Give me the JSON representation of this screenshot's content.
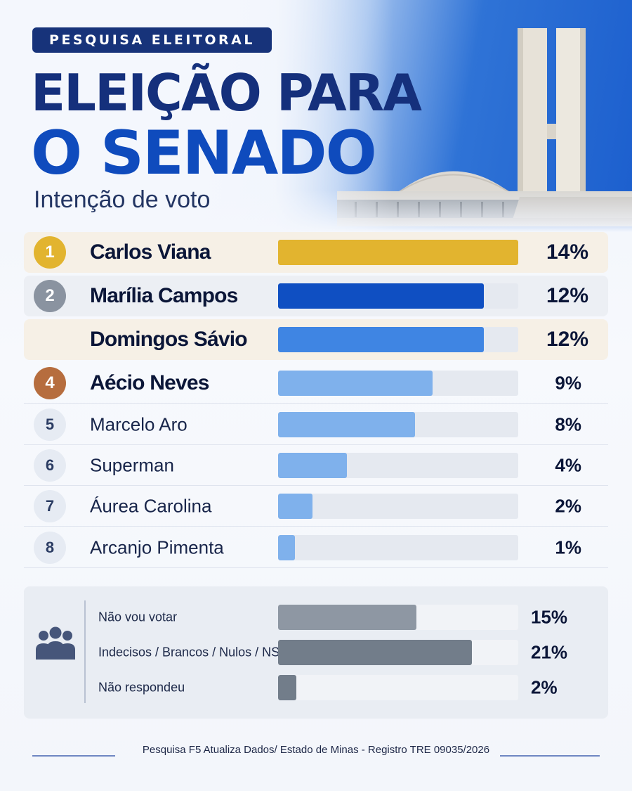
{
  "header": {
    "badge": "PESQUISA ELEITORAL",
    "title_line1": "ELEIÇÃO PARA",
    "title_line2": "O SENADO",
    "subtitle": "Intenção de voto"
  },
  "colors": {
    "gold": "#e2b42f",
    "silver": "#8a93a0",
    "bronze": "#b66d3e",
    "dark_blue": "#0f4fc2",
    "mid_blue": "#3f85e3",
    "light_blue": "#7fb1ec",
    "gray_bar": "#8e97a3",
    "dark_gray_bar": "#727d8a",
    "navy": "#15307c"
  },
  "chart_data": {
    "type": "bar",
    "orientation": "horizontal",
    "xlim": [
      0,
      14
    ],
    "candidates": [
      {
        "rank": "1",
        "name": "Carlos Viana",
        "value": 14,
        "label": "14%"
      },
      {
        "rank": "2",
        "name": "Marília Campos",
        "value": 12,
        "label": "12%"
      },
      {
        "rank": "",
        "name": "Domingos Sávio",
        "value": 12,
        "label": "12%"
      },
      {
        "rank": "4",
        "name": "Aécio Neves",
        "value": 9,
        "label": "9%"
      },
      {
        "rank": "5",
        "name": "Marcelo Aro",
        "value": 8,
        "label": "8%"
      },
      {
        "rank": "6",
        "name": "Superman",
        "value": 4,
        "label": "4%"
      },
      {
        "rank": "7",
        "name": "Áurea Carolina",
        "value": 2,
        "label": "2%"
      },
      {
        "rank": "8",
        "name": "Arcanjo Pimenta",
        "value": 1,
        "label": "1%"
      }
    ],
    "others": [
      {
        "name": "Não vou votar",
        "value": 15,
        "label": "15%"
      },
      {
        "name": "Indecisos / Brancos / Nulos / NS-NR",
        "value": 21,
        "label": "21%"
      },
      {
        "name": "Não respondeu",
        "value": 2,
        "label": "2%"
      }
    ],
    "others_xlim": [
      0,
      26
    ]
  },
  "footer": {
    "source": "Pesquisa F5 Atualiza Dados/ Estado de Minas - Registro TRE 09035/2026"
  },
  "icons": {
    "people": "people-group-icon",
    "building": "congress-building-image"
  }
}
